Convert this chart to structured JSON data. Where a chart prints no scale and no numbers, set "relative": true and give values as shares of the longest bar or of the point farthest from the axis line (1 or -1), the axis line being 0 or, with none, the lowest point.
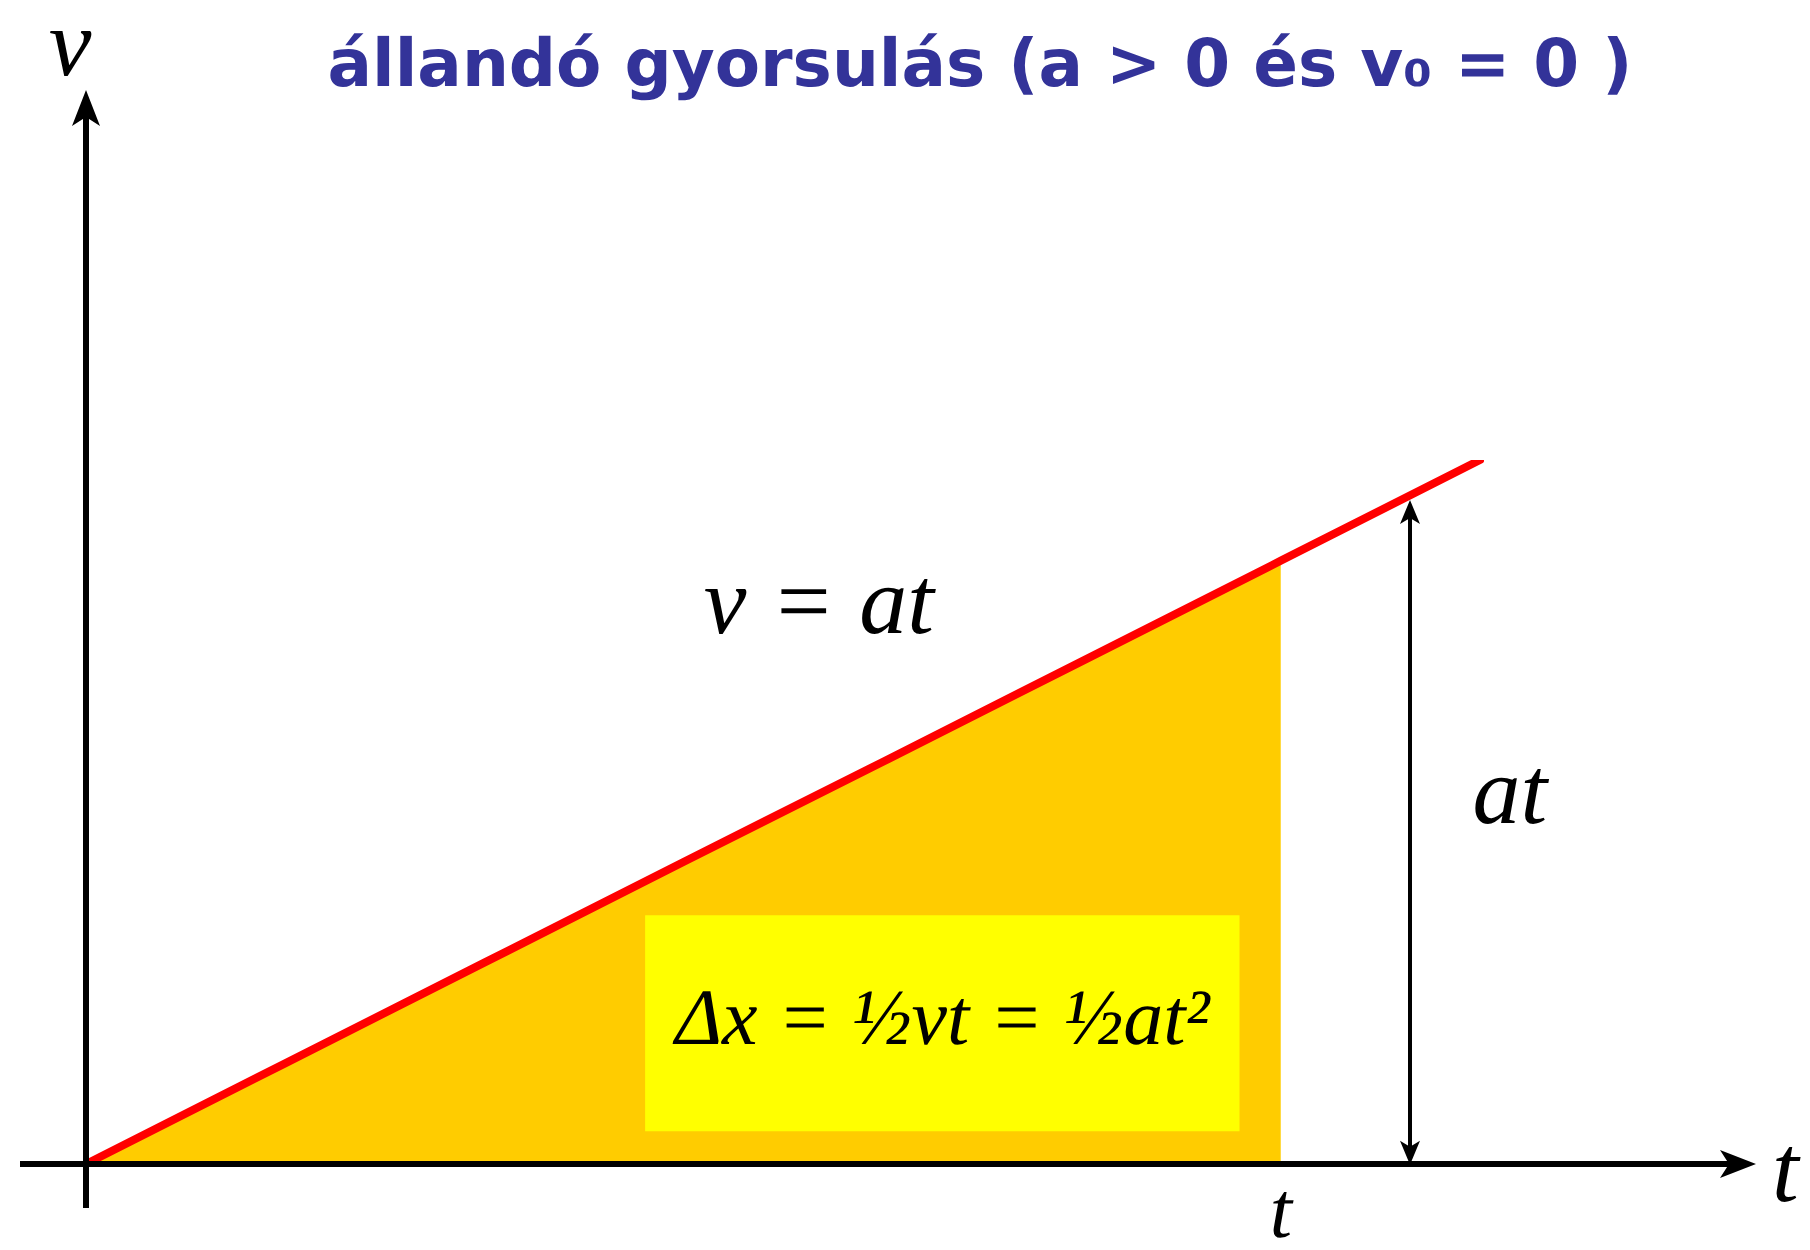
{
  "chart_data": {
    "type": "line",
    "title": "állandó gyorsulás (a > 0 és v₀ = 0 )",
    "xlabel": "t",
    "ylabel": "v",
    "annotations": [
      "v = at",
      "at",
      "Δx = ½vt = ½at²",
      "t"
    ],
    "categories": [
      null,
      null,
      null,
      null,
      null,
      null,
      null,
      null
    ],
    "relative": true,
    "series": [
      {
        "type": "area",
        "color": "#ffcc00",
        "values": [
          0,
          0.143,
          0.286,
          0.429,
          0.571,
          0.714,
          0.857,
          null
        ]
      },
      {
        "type": "line",
        "color": "#ff0000",
        "values": [
          0,
          0.143,
          0.286,
          0.429,
          0.571,
          0.714,
          0.857,
          1
        ]
      }
    ]
  }
}
